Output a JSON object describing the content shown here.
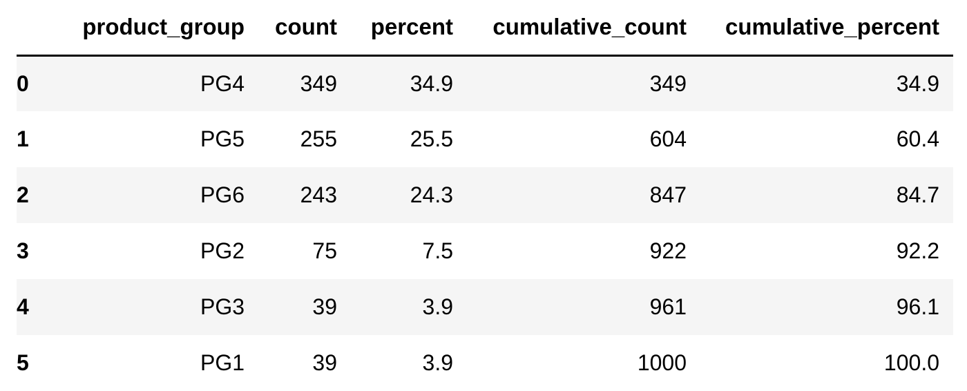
{
  "table": {
    "columns": [
      "",
      "product_group",
      "count",
      "percent",
      "cumulative_count",
      "cumulative_percent"
    ],
    "rows": [
      {
        "index": "0",
        "product_group": "PG4",
        "count": "349",
        "percent": "34.9",
        "cumulative_count": "349",
        "cumulative_percent": "34.9"
      },
      {
        "index": "1",
        "product_group": "PG5",
        "count": "255",
        "percent": "25.5",
        "cumulative_count": "604",
        "cumulative_percent": "60.4"
      },
      {
        "index": "2",
        "product_group": "PG6",
        "count": "243",
        "percent": "24.3",
        "cumulative_count": "847",
        "cumulative_percent": "84.7"
      },
      {
        "index": "3",
        "product_group": "PG2",
        "count": "75",
        "percent": "7.5",
        "cumulative_count": "922",
        "cumulative_percent": "92.2"
      },
      {
        "index": "4",
        "product_group": "PG3",
        "count": "39",
        "percent": "3.9",
        "cumulative_count": "961",
        "cumulative_percent": "96.1"
      },
      {
        "index": "5",
        "product_group": "PG1",
        "count": "39",
        "percent": "3.9",
        "cumulative_count": "1000",
        "cumulative_percent": "100.0"
      }
    ]
  }
}
